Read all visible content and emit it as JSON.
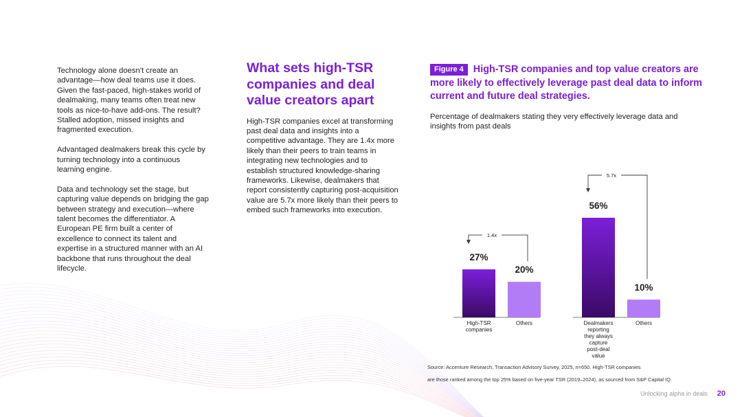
{
  "left_column": {
    "paragraphs": [
      "Technology alone doesn’t create an advantage—how deal teams use it does. Given the fast-paced, high-stakes world of dealmaking, many teams often treat new tools as nice-to-have add-ons. The result? Stalled adoption, missed insights and fragmented execution.",
      "Advantaged dealmakers break this cycle by turning technology into a continuous learning engine.",
      "Data and technology set the stage, but capturing value depends on bridging the gap between strategy and execution—where talent becomes the differentiator. A European PE firm built a center of excellence to connect its talent and expertise in a structured manner with an AI backbone that runs throughout the deal lifecycle."
    ]
  },
  "middle_column": {
    "title": "What sets high-TSR companies and deal value creators apart",
    "body": "High-TSR companies excel at transforming past deal data and insights into a competitive advantage. They are 1.4x more likely than their peers to train teams in integrating new technologies and to establish structured knowledge-sharing frameworks. Likewise, dealmakers that report consistently capturing post-acquisition value are 5.7x more likely than their peers to embed such frameworks into execution."
  },
  "figure": {
    "badge": "Figure 4",
    "title": "High-TSR companies and top value creators are more likely to effectively leverage past deal data to inform current and future deal strategies.",
    "subtitle": "Percentage of dealmakers stating they very effectively leverage data and insights from past deals"
  },
  "chart_data": {
    "type": "bar",
    "title": "High-TSR companies and top value creators are more likely to effectively leverage past deal data to inform current and future deal strategies.",
    "ylabel": "Percentage of dealmakers stating they very effectively leverage data and insights from past deals",
    "ylim": [
      0,
      60
    ],
    "groups": [
      {
        "multiplier": "1.4x",
        "bars": [
          {
            "category": "High-TSR companies",
            "value": 27,
            "label": "27%",
            "highlight": true
          },
          {
            "category": "Others",
            "value": 20,
            "label": "20%",
            "highlight": false
          }
        ]
      },
      {
        "multiplier": "5.7x",
        "bars": [
          {
            "category": "Dealmakers reporting they always capture post-deal value",
            "value": 56,
            "label": "56%",
            "highlight": true
          },
          {
            "category": "Others",
            "value": 10,
            "label": "10%",
            "highlight": false
          }
        ]
      }
    ],
    "colors": {
      "highlight_top": "#7b1fd9",
      "highlight_bottom": "#3b0a66",
      "other": "#b27cf7",
      "text": "#1f1f1f"
    }
  },
  "source": {
    "line1": "Source: Accenture Research, Transaction Advisory Survey, 2025, n=650. High-TSR companies",
    "line2": "are those ranked among the top 25% based on five-year TSR (2019–2024), as sourced from S&P Capital IQ."
  },
  "footer": {
    "label": "Unlocking alpha in deals",
    "page": "20"
  }
}
